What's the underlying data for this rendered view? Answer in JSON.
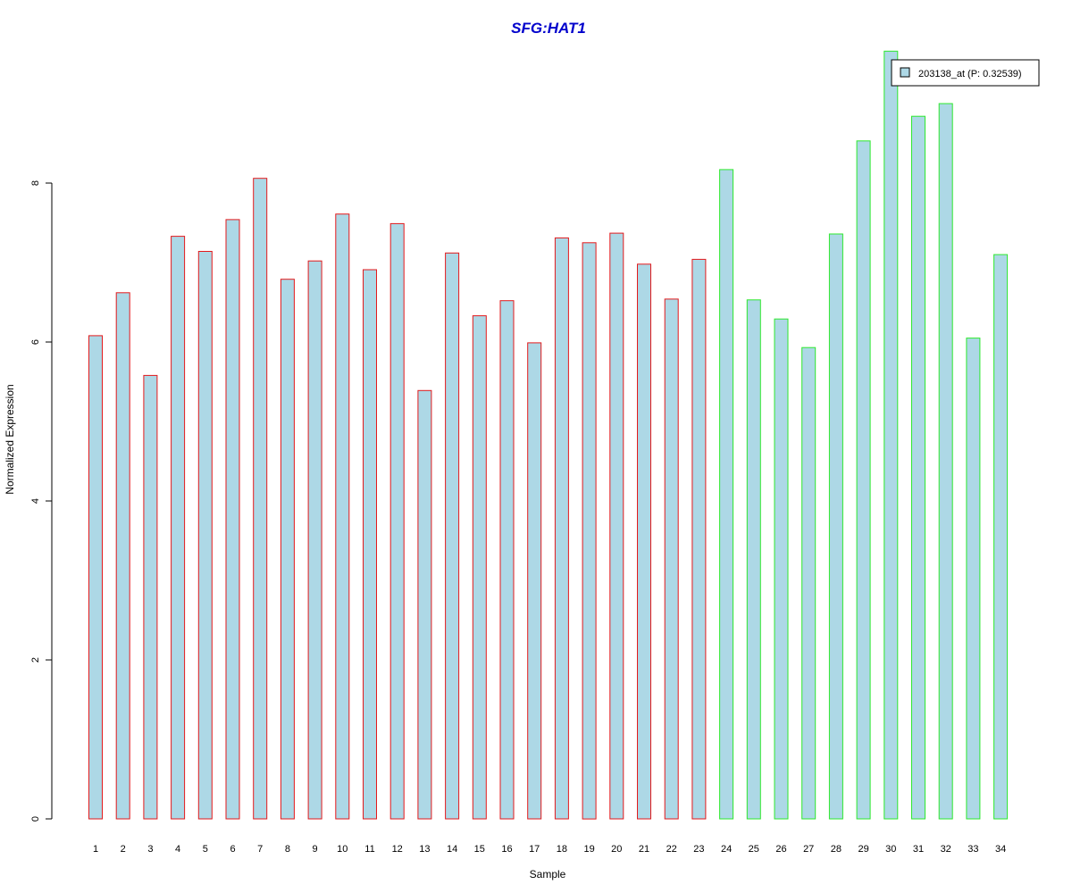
{
  "chart_data": {
    "type": "bar",
    "title": "SFG:HAT1",
    "xlabel": "Sample",
    "ylabel": "Normalized Expression",
    "ylim": [
      0,
      9.75
    ],
    "yticks": [
      "0",
      "2",
      "4",
      "6",
      "8"
    ],
    "categories": [
      "1",
      "2",
      "3",
      "4",
      "5",
      "6",
      "7",
      "8",
      "9",
      "10",
      "11",
      "12",
      "13",
      "14",
      "15",
      "16",
      "17",
      "18",
      "19",
      "20",
      "21",
      "22",
      "23",
      "24",
      "25",
      "26",
      "27",
      "28",
      "29",
      "30",
      "31",
      "32",
      "33",
      "34"
    ],
    "series": [
      {
        "name": "203138_at (P: 0.32539)",
        "values": [
          6.08,
          6.62,
          5.58,
          7.33,
          7.14,
          7.54,
          8.06,
          6.79,
          7.02,
          7.61,
          6.91,
          7.49,
          5.39,
          7.12,
          6.33,
          6.52,
          5.99,
          7.31,
          7.25,
          7.37,
          6.98,
          6.54,
          7.04,
          8.17,
          6.53,
          6.29,
          5.93,
          7.36,
          8.53,
          9.66,
          8.84,
          9.0,
          6.05,
          7.1
        ]
      }
    ],
    "groups": [
      {
        "from": 1,
        "to": 23,
        "border_color": "#e31a1c"
      },
      {
        "from": 24,
        "to": 34,
        "border_color": "#2ee82e"
      }
    ],
    "bar_fill": "#add8e6",
    "title_color": "#0000cc",
    "legend": {
      "label": "203138_at (P: 0.32539)",
      "placement": "top-right"
    },
    "grid": false
  }
}
